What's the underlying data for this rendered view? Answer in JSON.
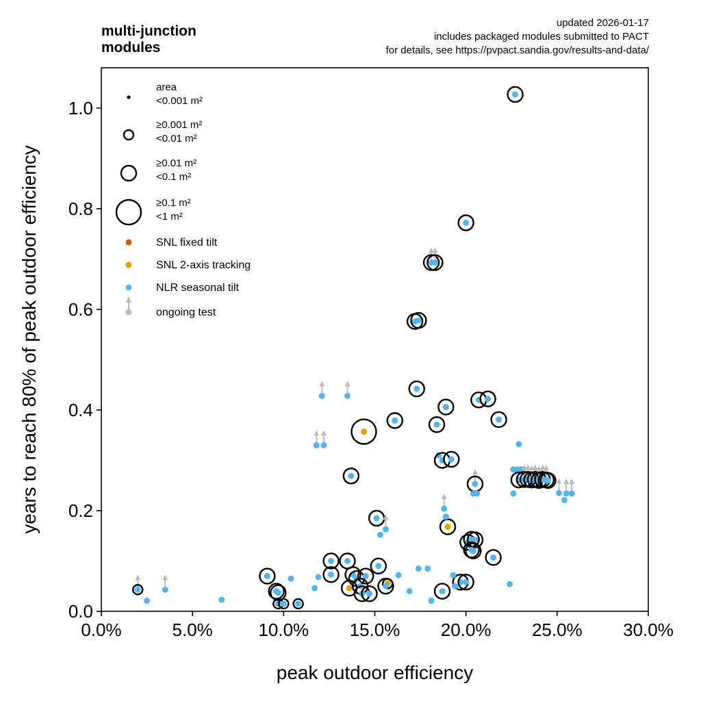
{
  "header": {
    "title": "multi-junction\nmodules",
    "meta_lines": [
      "updated 2026-01-17",
      "includes packaged modules submitted to PACT",
      "for details, see https://pvpact.sandia.gov/results-and-data/"
    ]
  },
  "legend": {
    "area_header": "area",
    "sizes": [
      {
        "label": "<0.001 m²",
        "size_class": 0
      },
      {
        "label": "≥0.001 m²\n<0.01 m²",
        "size_class": 1
      },
      {
        "label": "≥0.01 m²\n<0.1 m²",
        "size_class": 2
      },
      {
        "label": "≥0.1 m²\n<1 m²",
        "size_class": 3
      }
    ],
    "sites": [
      {
        "label": "SNL fixed tilt",
        "color": "#d55e00"
      },
      {
        "label": "SNL 2-axis tracking",
        "color": "#e69f00"
      },
      {
        "label": "NLR seasonal tilt",
        "color": "#56b4e9"
      }
    ],
    "ongoing_label": "ongoing test",
    "ongoing_color": "#bbbbbb",
    "placement": "upper-left"
  },
  "chart_data": {
    "type": "scatter",
    "xlabel": "peak outdoor efficiency",
    "ylabel": "years to reach 80% of peak outdoor efficiency",
    "xlim": [
      0,
      0.3
    ],
    "ylim": [
      0,
      1.08
    ],
    "xticks": [
      0,
      0.05,
      0.1,
      0.15,
      0.2,
      0.25,
      0.3
    ],
    "xtick_labels": [
      "0.0%",
      "5.0%",
      "10.0%",
      "15.0%",
      "20.0%",
      "25.0%",
      "30.0%"
    ],
    "yticks": [
      0,
      0.2,
      0.4,
      0.6,
      0.8,
      1.0
    ],
    "ytick_labels": [
      "0.0",
      "0.2",
      "0.4",
      "0.6",
      "0.8",
      "1.0"
    ],
    "grid": false,
    "series": [
      {
        "name": "SNL 2-axis tracking",
        "color": "#e69f00",
        "points": [
          {
            "x": 0.144,
            "y": 0.357,
            "size_class": 3
          },
          {
            "x": 0.19,
            "y": 0.168,
            "size_class": 2
          },
          {
            "x": 0.136,
            "y": 0.046,
            "size_class": 2
          },
          {
            "x": 0.157,
            "y": 0.055,
            "size_class": 1
          }
        ]
      },
      {
        "name": "NLR seasonal tilt",
        "color": "#56b4e9",
        "points": [
          {
            "x": 0.227,
            "y": 1.027,
            "size_class": 2
          },
          {
            "x": 0.2,
            "y": 0.772,
            "size_class": 2
          },
          {
            "x": 0.181,
            "y": 0.693,
            "size_class": 2,
            "ongoing": true
          },
          {
            "x": 0.183,
            "y": 0.693,
            "size_class": 2,
            "ongoing": true
          },
          {
            "x": 0.172,
            "y": 0.576,
            "size_class": 2
          },
          {
            "x": 0.174,
            "y": 0.578,
            "size_class": 2
          },
          {
            "x": 0.121,
            "y": 0.428,
            "size_class": 0,
            "ongoing": true
          },
          {
            "x": 0.135,
            "y": 0.428,
            "size_class": 0,
            "ongoing": true
          },
          {
            "x": 0.118,
            "y": 0.33,
            "size_class": 0,
            "ongoing": true
          },
          {
            "x": 0.122,
            "y": 0.33,
            "size_class": 0,
            "ongoing": true
          },
          {
            "x": 0.173,
            "y": 0.442,
            "size_class": 2
          },
          {
            "x": 0.161,
            "y": 0.379,
            "size_class": 2
          },
          {
            "x": 0.184,
            "y": 0.371,
            "size_class": 2
          },
          {
            "x": 0.189,
            "y": 0.406,
            "size_class": 2
          },
          {
            "x": 0.207,
            "y": 0.42,
            "size_class": 2
          },
          {
            "x": 0.212,
            "y": 0.422,
            "size_class": 2
          },
          {
            "x": 0.218,
            "y": 0.381,
            "size_class": 2
          },
          {
            "x": 0.185,
            "y": 0.31,
            "size_class": 0
          },
          {
            "x": 0.187,
            "y": 0.3,
            "size_class": 2
          },
          {
            "x": 0.192,
            "y": 0.302,
            "size_class": 2
          },
          {
            "x": 0.229,
            "y": 0.332,
            "size_class": 0
          },
          {
            "x": 0.205,
            "y": 0.253,
            "size_class": 2,
            "ongoing": true
          },
          {
            "x": 0.204,
            "y": 0.234,
            "size_class": 0
          },
          {
            "x": 0.206,
            "y": 0.234,
            "size_class": 0
          },
          {
            "x": 0.137,
            "y": 0.269,
            "size_class": 2
          },
          {
            "x": 0.151,
            "y": 0.185,
            "size_class": 2
          },
          {
            "x": 0.153,
            "y": 0.152,
            "size_class": 0
          },
          {
            "x": 0.156,
            "y": 0.163,
            "size_class": 0,
            "ongoing": true
          },
          {
            "x": 0.188,
            "y": 0.204,
            "size_class": 0,
            "ongoing": true
          },
          {
            "x": 0.189,
            "y": 0.188,
            "size_class": 0
          },
          {
            "x": 0.226,
            "y": 0.282,
            "size_class": 0
          },
          {
            "x": 0.228,
            "y": 0.282,
            "size_class": 0
          },
          {
            "x": 0.23,
            "y": 0.282,
            "size_class": 0
          },
          {
            "x": 0.229,
            "y": 0.261,
            "size_class": 2
          },
          {
            "x": 0.232,
            "y": 0.262,
            "size_class": 2,
            "ongoing": true
          },
          {
            "x": 0.234,
            "y": 0.262,
            "size_class": 2,
            "ongoing": true
          },
          {
            "x": 0.236,
            "y": 0.261,
            "size_class": 2,
            "ongoing": true
          },
          {
            "x": 0.238,
            "y": 0.262,
            "size_class": 2,
            "ongoing": true
          },
          {
            "x": 0.24,
            "y": 0.26,
            "size_class": 2,
            "ongoing": true
          },
          {
            "x": 0.242,
            "y": 0.262,
            "size_class": 2,
            "ongoing": true
          },
          {
            "x": 0.244,
            "y": 0.261,
            "size_class": 2,
            "ongoing": true
          },
          {
            "x": 0.245,
            "y": 0.26,
            "size_class": 2
          },
          {
            "x": 0.226,
            "y": 0.234,
            "size_class": 0
          },
          {
            "x": 0.251,
            "y": 0.235,
            "size_class": 0,
            "ongoing": true
          },
          {
            "x": 0.254,
            "y": 0.221,
            "size_class": 0
          },
          {
            "x": 0.255,
            "y": 0.234,
            "size_class": 0,
            "ongoing": true
          },
          {
            "x": 0.258,
            "y": 0.234,
            "size_class": 0,
            "ongoing": true
          },
          {
            "x": 0.201,
            "y": 0.137,
            "size_class": 2
          },
          {
            "x": 0.203,
            "y": 0.143,
            "size_class": 2
          },
          {
            "x": 0.205,
            "y": 0.142,
            "size_class": 2
          },
          {
            "x": 0.203,
            "y": 0.122,
            "size_class": 2
          },
          {
            "x": 0.204,
            "y": 0.12,
            "size_class": 2
          },
          {
            "x": 0.215,
            "y": 0.107,
            "size_class": 2
          },
          {
            "x": 0.197,
            "y": 0.058,
            "size_class": 2
          },
          {
            "x": 0.2,
            "y": 0.058,
            "size_class": 2
          },
          {
            "x": 0.193,
            "y": 0.072,
            "size_class": 0
          },
          {
            "x": 0.194,
            "y": 0.05,
            "size_class": 0
          },
          {
            "x": 0.187,
            "y": 0.04,
            "size_class": 2
          },
          {
            "x": 0.181,
            "y": 0.021,
            "size_class": 0
          },
          {
            "x": 0.174,
            "y": 0.085,
            "size_class": 0
          },
          {
            "x": 0.179,
            "y": 0.085,
            "size_class": 0
          },
          {
            "x": 0.224,
            "y": 0.054,
            "size_class": 0
          },
          {
            "x": 0.163,
            "y": 0.072,
            "size_class": 0
          },
          {
            "x": 0.169,
            "y": 0.04,
            "size_class": 0
          },
          {
            "x": 0.126,
            "y": 0.1,
            "size_class": 2
          },
          {
            "x": 0.126,
            "y": 0.073,
            "size_class": 2
          },
          {
            "x": 0.135,
            "y": 0.1,
            "size_class": 2
          },
          {
            "x": 0.138,
            "y": 0.073,
            "size_class": 2
          },
          {
            "x": 0.14,
            "y": 0.065,
            "size_class": 2
          },
          {
            "x": 0.142,
            "y": 0.05,
            "size_class": 2
          },
          {
            "x": 0.145,
            "y": 0.07,
            "size_class": 2
          },
          {
            "x": 0.152,
            "y": 0.09,
            "size_class": 2
          },
          {
            "x": 0.143,
            "y": 0.035,
            "size_class": 2
          },
          {
            "x": 0.147,
            "y": 0.035,
            "size_class": 2
          },
          {
            "x": 0.156,
            "y": 0.05,
            "size_class": 2
          },
          {
            "x": 0.091,
            "y": 0.07,
            "size_class": 2
          },
          {
            "x": 0.096,
            "y": 0.04,
            "size_class": 2
          },
          {
            "x": 0.097,
            "y": 0.037,
            "size_class": 2
          },
          {
            "x": 0.097,
            "y": 0.015,
            "size_class": 1
          },
          {
            "x": 0.1,
            "y": 0.015,
            "size_class": 1
          },
          {
            "x": 0.108,
            "y": 0.015,
            "size_class": 1
          },
          {
            "x": 0.104,
            "y": 0.065,
            "size_class": 0
          },
          {
            "x": 0.117,
            "y": 0.046,
            "size_class": 0
          },
          {
            "x": 0.119,
            "y": 0.068,
            "size_class": 0
          },
          {
            "x": 0.066,
            "y": 0.023,
            "size_class": 0
          },
          {
            "x": 0.035,
            "y": 0.043,
            "size_class": 0,
            "ongoing": true
          },
          {
            "x": 0.025,
            "y": 0.021,
            "size_class": 0
          },
          {
            "x": 0.02,
            "y": 0.043,
            "size_class": 1,
            "ongoing": true
          }
        ]
      }
    ]
  }
}
